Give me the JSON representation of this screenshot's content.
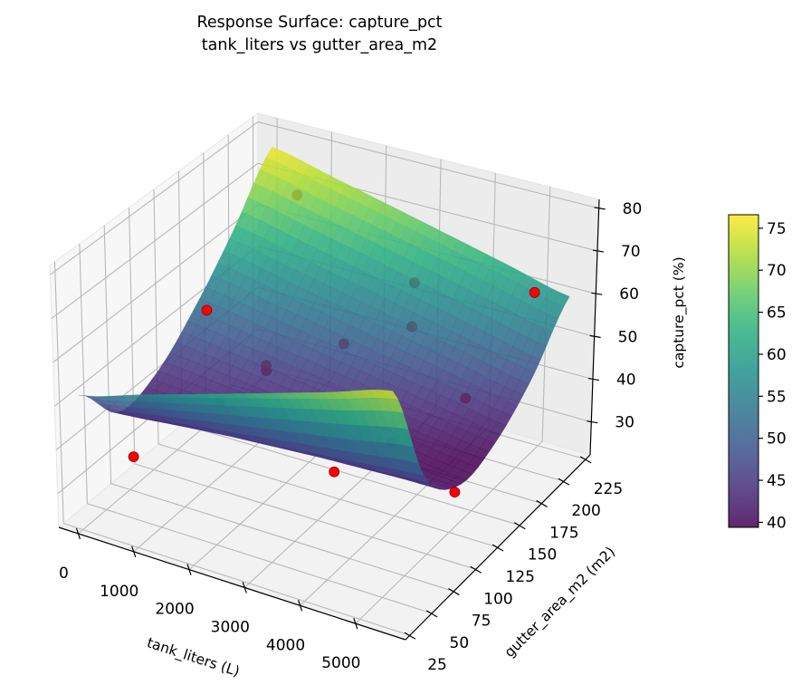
{
  "chart_data": {
    "type": "surface",
    "title_lines": [
      "Response Surface: capture_pct",
      "tank_liters vs gutter_area_m2"
    ],
    "xlabel": "tank_liters (L)",
    "ylabel": "gutter_area_m2 (m2)",
    "zlabel": "capture_pct (%)",
    "xlim": [
      -350,
      5900
    ],
    "ylim": [
      20,
      230
    ],
    "zlim": [
      22.3,
      82.1
    ],
    "xticks": [
      0,
      1000,
      2000,
      3000,
      4000,
      5000
    ],
    "yticks": [
      25,
      50,
      75,
      100,
      125,
      150,
      175,
      200,
      225
    ],
    "zticks": [
      30,
      40,
      50,
      60,
      70,
      80
    ],
    "grid": true,
    "surface": {
      "colormap": "viridis",
      "x": [
        0,
        1100,
        2200,
        3300,
        4400,
        5500
      ],
      "y": [
        25,
        65,
        105,
        145,
        185,
        225
      ],
      "z": [
        [
          53,
          57.4,
          61.8,
          66.2,
          70.6,
          75
        ],
        [
          42,
          43.2,
          44.4,
          45.6,
          46.8,
          48
        ],
        [
          44,
          43,
          42,
          41,
          40,
          39
        ],
        [
          52,
          49.8,
          47.6,
          45.4,
          43.2,
          41
        ],
        [
          63,
          60,
          57,
          54,
          51,
          48
        ],
        [
          76,
          72.6,
          69.2,
          65.8,
          62.4,
          59
        ]
      ]
    },
    "points": [
      {
        "x": 460,
        "y": 225,
        "z": 66
      },
      {
        "x": 1350,
        "y": 80,
        "z": 68
      },
      {
        "x": 410,
        "y": 56,
        "z": 35
      },
      {
        "x": 3000,
        "y": 118,
        "z": 30
      },
      {
        "x": 3360,
        "y": 160,
        "z": 30
      },
      {
        "x": 4850,
        "y": 140,
        "z": 28
      },
      {
        "x": 5000,
        "y": 216,
        "z": 60
      },
      {
        "x": 2810,
        "y": 215,
        "z": 55
      },
      {
        "x": 2810,
        "y": 213,
        "z": 45
      },
      {
        "x": 1930,
        "y": 191,
        "z": 42
      },
      {
        "x": 1070,
        "y": 158,
        "z": 40
      },
      {
        "x": 1020,
        "y": 161,
        "z": 38
      },
      {
        "x": 540,
        "y": 140,
        "z": 33
      },
      {
        "x": 4040,
        "y": 200,
        "z": 35
      }
    ],
    "colorbar": {
      "clim": [
        39.4,
        76.6
      ],
      "ticks": [
        40,
        45,
        50,
        55,
        60,
        65,
        70,
        75
      ]
    },
    "colors": {
      "points": "#ff0000",
      "point_edge": "#8b0000",
      "grid": "#b8b8b8",
      "viridis": [
        "#440154",
        "#472d7b",
        "#3b528b",
        "#2c728e",
        "#21918c",
        "#28ae80",
        "#5ec962",
        "#addc30",
        "#fde725"
      ]
    }
  }
}
